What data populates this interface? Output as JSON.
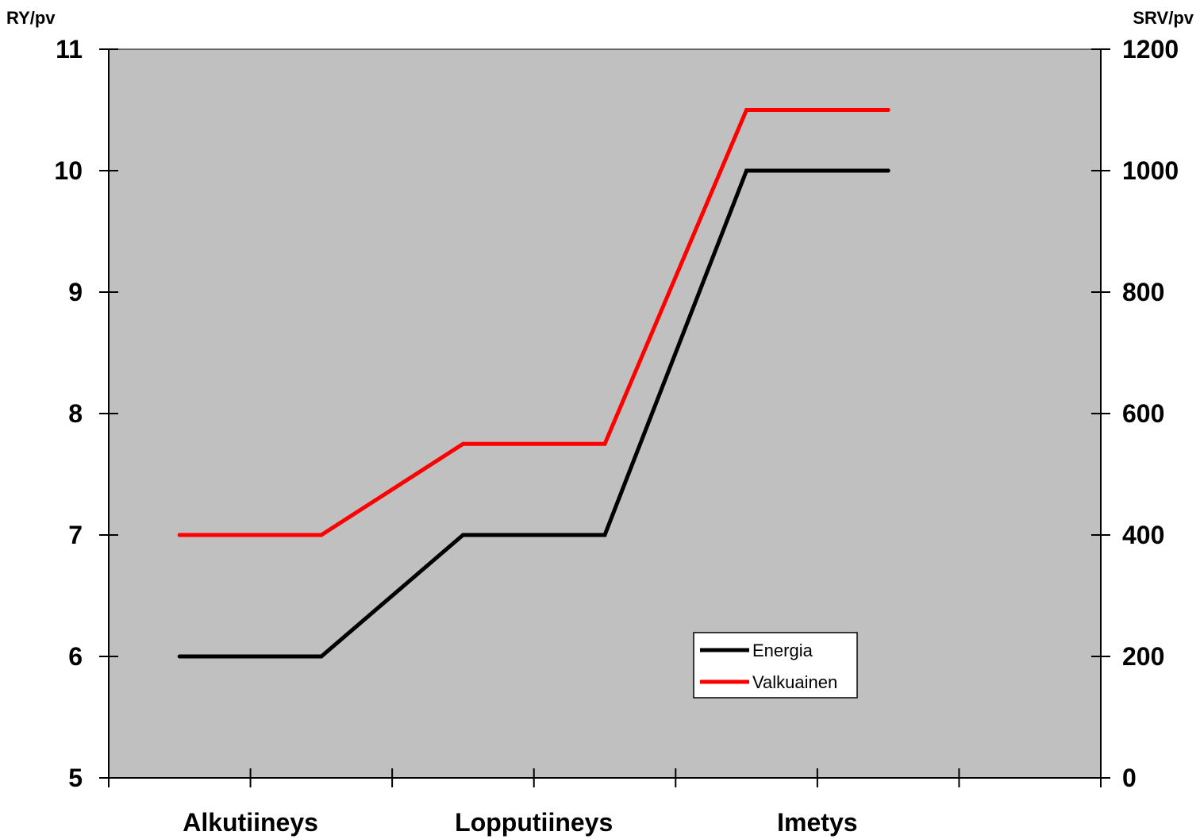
{
  "chart_data": {
    "type": "line",
    "y_left": {
      "label": "RY/pv",
      "ylim": [
        5,
        11
      ],
      "ticks": [
        5,
        6,
        7,
        8,
        9,
        10,
        11
      ]
    },
    "y_right": {
      "label": "SRV/pv",
      "ylim": [
        0,
        1200
      ],
      "ticks": [
        0,
        200,
        400,
        600,
        800,
        1000,
        1200
      ]
    },
    "x": [
      1,
      2,
      3,
      4,
      5,
      6
    ],
    "categories": [
      "Alkutiineys",
      "Lopputiineys",
      "Imetys"
    ],
    "series": [
      {
        "name": "Energia",
        "axis": "left",
        "color": "#000000",
        "values": [
          6,
          6,
          7,
          7,
          10,
          10
        ]
      },
      {
        "name": "Valkuainen",
        "axis": "right",
        "color": "#ff0000",
        "values": [
          400,
          400,
          550,
          550,
          1100,
          1100
        ]
      }
    ],
    "plot_background": "#c0c0c0",
    "legend_placement": "bottom-right",
    "grid": false
  }
}
